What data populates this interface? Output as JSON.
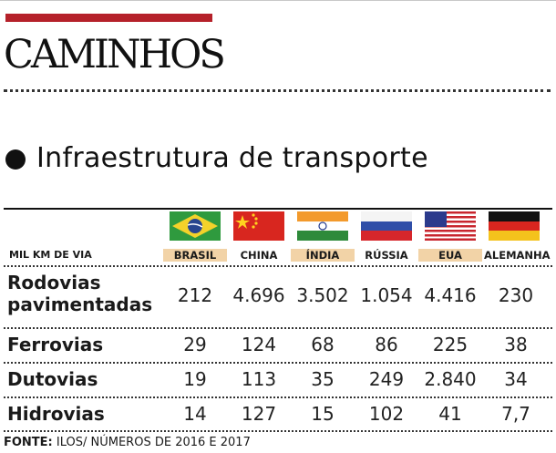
{
  "section_title": "CAMINHOS",
  "subtitle": "Infraestrutura de transporte",
  "unit_label": "MIL KM DE VIA",
  "source_label": "FONTE:",
  "source_text": "ILOS/ NÚMEROS DE 2016 E 2017",
  "colors": {
    "accent": "#b5212a",
    "highlight": "#f2d3a7"
  },
  "countries": [
    {
      "name": "BRASIL",
      "flag": "brazil-flag",
      "highlight": true
    },
    {
      "name": "CHINA",
      "flag": "china-flag",
      "highlight": false
    },
    {
      "name": "ÍNDIA",
      "flag": "india-flag",
      "highlight": true
    },
    {
      "name": "RÚSSIA",
      "flag": "russia-flag",
      "highlight": false
    },
    {
      "name": "EUA",
      "flag": "usa-flag",
      "highlight": true
    },
    {
      "name": "ALEMANHA",
      "flag": "germany-flag",
      "highlight": false
    }
  ],
  "chart_data": {
    "type": "table",
    "columns": [
      "BRASIL",
      "CHINA",
      "ÍNDIA",
      "RÚSSIA",
      "EUA",
      "ALEMANHA"
    ],
    "rows": [
      {
        "label": "Rodovias pavimentadas",
        "label_lines": [
          "Rodovias",
          "pavimentadas"
        ],
        "values": [
          "212",
          "4.696",
          "3.502",
          "1.054",
          "4.416",
          "230"
        ]
      },
      {
        "label": "Ferrovias",
        "label_lines": [
          "Ferrovias"
        ],
        "values": [
          "29",
          "124",
          "68",
          "86",
          "225",
          "38"
        ]
      },
      {
        "label": "Dutovias",
        "label_lines": [
          "Dutovias"
        ],
        "values": [
          "19",
          "113",
          "35",
          "249",
          "2.840",
          "34"
        ]
      },
      {
        "label": "Hidrovias",
        "label_lines": [
          "Hidrovias"
        ],
        "values": [
          "14",
          "127",
          "15",
          "102",
          "41",
          "7,7"
        ]
      }
    ]
  }
}
